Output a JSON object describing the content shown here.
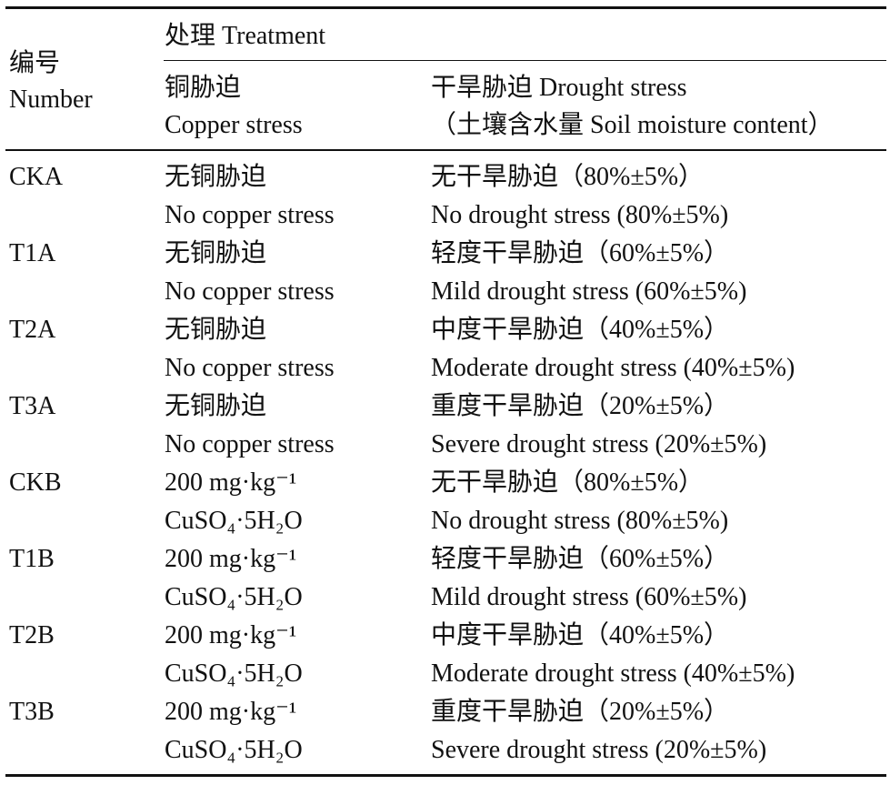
{
  "table": {
    "header": {
      "number": [
        "编号",
        "Number"
      ],
      "treatment": "处理 Treatment",
      "copper": [
        "铜胁迫",
        "Copper stress"
      ],
      "drought": [
        "干旱胁迫 Drought stress",
        "（土壤含水量 Soil moisture content）"
      ]
    },
    "rows": [
      {
        "number": "CKA",
        "copper": [
          "无铜胁迫",
          "No copper stress"
        ],
        "drought": [
          "无干旱胁迫（80%±5%）",
          "No drought stress (80%±5%)"
        ]
      },
      {
        "number": "T1A",
        "copper": [
          "无铜胁迫",
          "No copper stress"
        ],
        "drought": [
          "轻度干旱胁迫（60%±5%）",
          "Mild drought stress (60%±5%)"
        ]
      },
      {
        "number": "T2A",
        "copper": [
          "无铜胁迫",
          "No copper stress"
        ],
        "drought": [
          "中度干旱胁迫（40%±5%）",
          "Moderate drought stress (40%±5%)"
        ]
      },
      {
        "number": "T3A",
        "copper": [
          "无铜胁迫",
          "No copper stress"
        ],
        "drought": [
          "重度干旱胁迫（20%±5%）",
          "Severe drought stress (20%±5%)"
        ]
      },
      {
        "number": "CKB",
        "copper": [
          "200 mg·kg⁻¹",
          "CuSO₄·5H₂O"
        ],
        "drought": [
          "无干旱胁迫（80%±5%）",
          "No drought stress (80%±5%)"
        ]
      },
      {
        "number": "T1B",
        "copper": [
          "200 mg·kg⁻¹",
          "CuSO₄·5H₂O"
        ],
        "drought": [
          "轻度干旱胁迫（60%±5%）",
          "Mild drought stress (60%±5%)"
        ]
      },
      {
        "number": "T2B",
        "copper": [
          "200 mg·kg⁻¹",
          "CuSO₄·5H₂O"
        ],
        "drought": [
          "中度干旱胁迫（40%±5%）",
          "Moderate drought stress (40%±5%)"
        ]
      },
      {
        "number": "T3B",
        "copper": [
          "200 mg·kg⁻¹",
          "CuSO₄·5H₂O"
        ],
        "drought": [
          "重度干旱胁迫（20%±5%）",
          "Severe drought stress (20%±5%)"
        ]
      }
    ]
  }
}
